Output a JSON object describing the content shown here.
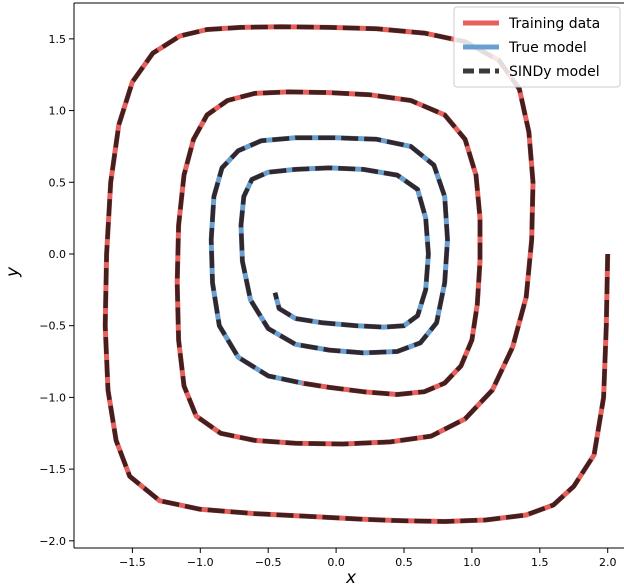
{
  "chart_data": {
    "type": "line",
    "title": "",
    "xlabel": "x",
    "ylabel": "y",
    "xlim": [
      -1.93,
      2.12
    ],
    "ylim": [
      -2.05,
      1.75
    ],
    "xticks": [
      -1.5,
      -1.0,
      -0.5,
      0.0,
      0.5,
      1.0,
      1.5,
      2.0
    ],
    "xtick_labels": [
      "−1.5",
      "−1.0",
      "−0.5",
      "0.0",
      "0.5",
      "1.0",
      "1.5",
      "2.0"
    ],
    "yticks": [
      -2.0,
      -1.5,
      -1.0,
      -0.5,
      0.0,
      0.5,
      1.0,
      1.5
    ],
    "ytick_labels": [
      "−2.0",
      "−1.5",
      "−1.0",
      "−0.5",
      "0.0",
      "0.5",
      "1.0",
      "1.5"
    ],
    "grid": false,
    "legend_position": "top-right",
    "series": [
      {
        "name": "Training data",
        "color": "#e8605c",
        "style": "solid",
        "x": [
          2.0,
          1.99,
          1.97,
          1.9,
          1.75,
          1.6,
          1.4,
          1.1,
          0.8,
          0.5,
          0.2,
          -0.2,
          -0.6,
          -1.0,
          -1.3,
          -1.52,
          -1.62,
          -1.68,
          -1.7,
          -1.69,
          -1.66,
          -1.6,
          -1.5,
          -1.35,
          -1.15,
          -0.95,
          -0.7,
          -0.4,
          -0.05,
          0.3,
          0.65,
          0.95,
          1.2,
          1.35,
          1.42,
          1.45,
          1.44,
          1.4,
          1.3,
          1.15,
          0.95,
          0.7,
          0.4,
          0.05,
          -0.3,
          -0.6,
          -0.85,
          -1.03,
          -1.12,
          -1.16,
          -1.17,
          -1.16,
          -1.12,
          -1.05,
          -0.95,
          -0.8,
          -0.6,
          -0.35,
          -0.05,
          0.25,
          0.55,
          0.8,
          0.95,
          1.03,
          1.06,
          1.06,
          1.04,
          1.0,
          0.92,
          0.8,
          0.65,
          0.45,
          0.2,
          -0.05,
          -0.25
        ],
        "y": [
          0.0,
          -0.5,
          -1.0,
          -1.4,
          -1.62,
          -1.75,
          -1.82,
          -1.855,
          -1.865,
          -1.86,
          -1.85,
          -1.83,
          -1.81,
          -1.78,
          -1.72,
          -1.55,
          -1.3,
          -0.95,
          -0.5,
          0.0,
          0.5,
          0.9,
          1.2,
          1.4,
          1.52,
          1.565,
          1.58,
          1.585,
          1.58,
          1.57,
          1.54,
          1.48,
          1.35,
          1.15,
          0.85,
          0.5,
          0.1,
          -0.3,
          -0.65,
          -0.95,
          -1.15,
          -1.27,
          -1.31,
          -1.325,
          -1.32,
          -1.3,
          -1.25,
          -1.13,
          -0.92,
          -0.6,
          -0.2,
          0.2,
          0.55,
          0.8,
          0.97,
          1.07,
          1.12,
          1.13,
          1.125,
          1.11,
          1.07,
          0.97,
          0.8,
          0.55,
          0.25,
          -0.05,
          -0.35,
          -0.6,
          -0.78,
          -0.9,
          -0.96,
          -0.98,
          -0.96,
          -0.93,
          -0.9
        ]
      },
      {
        "name": "True model",
        "color": "#6a9fd2",
        "style": "solid",
        "x": [
          -0.25,
          -0.5,
          -0.72,
          -0.86,
          -0.91,
          -0.92,
          -0.9,
          -0.84,
          -0.72,
          -0.55,
          -0.3,
          0.0,
          0.3,
          0.55,
          0.72,
          0.8,
          0.82,
          0.8,
          0.74,
          0.62,
          0.45,
          0.2,
          -0.05,
          -0.3,
          -0.5,
          -0.63,
          -0.69,
          -0.7,
          -0.68,
          -0.62,
          -0.5,
          -0.3,
          -0.05,
          0.2,
          0.45,
          0.6,
          0.66,
          0.68,
          0.66,
          0.6,
          0.5,
          0.35,
          0.15,
          -0.1,
          -0.3,
          -0.42,
          -0.45
        ],
        "y": [
          -0.9,
          -0.85,
          -0.72,
          -0.5,
          -0.2,
          0.1,
          0.4,
          0.6,
          0.72,
          0.79,
          0.81,
          0.81,
          0.8,
          0.75,
          0.62,
          0.4,
          0.1,
          -0.2,
          -0.48,
          -0.62,
          -0.68,
          -0.69,
          -0.67,
          -0.63,
          -0.52,
          -0.32,
          -0.05,
          0.2,
          0.4,
          0.52,
          0.57,
          0.59,
          0.6,
          0.59,
          0.55,
          0.45,
          0.25,
          0.0,
          -0.25,
          -0.43,
          -0.5,
          -0.51,
          -0.5,
          -0.48,
          -0.45,
          -0.38,
          -0.27
        ]
      },
      {
        "name": "SINDy model",
        "color": "#3a3a3a",
        "style": "dashed",
        "x": [],
        "y": []
      }
    ]
  }
}
